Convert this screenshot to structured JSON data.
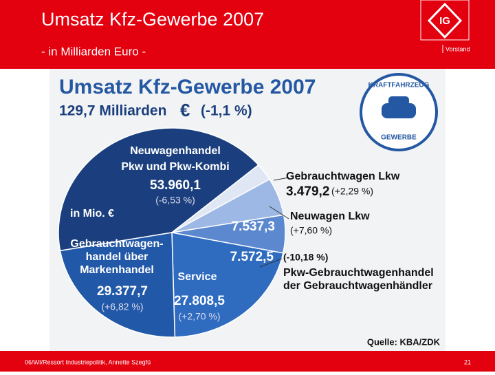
{
  "header": {
    "title": "Umsatz Kfz-Gewerbe 2007",
    "subtitle": "- in Milliarden Euro -",
    "org": "Vorstand"
  },
  "footer": {
    "source_line": "06/WI/Ressort Industriepolitik, Annette Szegfü",
    "page": "21"
  },
  "chart_data": {
    "type": "pie",
    "title": "Umsatz Kfz-Gewerbe 2007",
    "total": "129,7 Milliarden",
    "currency": "€",
    "total_change": "(-1,1 %)",
    "unit_note": "in Mio. €",
    "source": "Quelle: KBA/ZDK",
    "badge": [
      "KRAFTFAHRZEUG",
      "GEWERBE"
    ],
    "categories": [
      [
        "Neuwagenhandel",
        "Pkw und Pkw-Kombi"
      ],
      [
        "Gebrauchtwagen Lkw"
      ],
      [
        "Neuwagen Lkw"
      ],
      [
        "Pkw-Gebrauchtwagenhandel",
        "der Gebrauchtwagenhändler"
      ],
      [
        "Service"
      ],
      [
        "Gebrauchtwagen-",
        "handel über",
        "Markenhandel"
      ]
    ],
    "values": [
      53960.1,
      3479.2,
      7537.3,
      7572.5,
      27808.5,
      29377.7
    ],
    "value_labels": [
      "53.960,1",
      "3.479,2",
      "7.537,3",
      "7.572,5",
      "27.808,5",
      "29.377,7"
    ],
    "changes": [
      {
        "value": -6.53,
        "label": "(-6,53 %)"
      },
      {
        "value": 2.29,
        "label": "(+2,29 %)"
      },
      {
        "value": 7.6,
        "label": "(+7,60 %)"
      },
      {
        "value": -10.18,
        "label": "(-10,18 %)"
      },
      {
        "value": 2.7,
        "label": "(+2,70 %)"
      },
      {
        "value": 6.82,
        "label": "(+6,82 %)"
      }
    ],
    "colors": [
      "#1b3f7e",
      "#dfe7f4",
      "#9db8e4",
      "#5c88cf",
      "#2f6cc0",
      "#2258a8"
    ]
  }
}
